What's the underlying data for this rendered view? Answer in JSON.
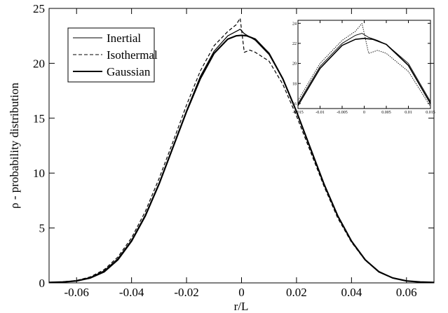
{
  "chart_data": [
    {
      "type": "line",
      "title": "",
      "xlabel": "r/L",
      "ylabel": "ρ - probability distribution",
      "xlim": [
        -0.07,
        0.07
      ],
      "ylim": [
        0,
        25
      ],
      "xticks": [
        -0.06,
        -0.04,
        -0.02,
        0,
        0.02,
        0.04,
        0.06
      ],
      "xtick_labels": [
        "-0.06",
        "-0.04",
        "-0.02",
        "0",
        "0.02",
        "0.04",
        "0.06"
      ],
      "yticks": [
        0,
        5,
        10,
        15,
        20,
        25
      ],
      "ytick_labels": [
        "0",
        "5",
        "10",
        "15",
        "20",
        "25"
      ],
      "grid": false,
      "legend_position": "top-left",
      "series": [
        {
          "name": "Inertial",
          "style": "solid-thin",
          "color": "#000000",
          "x": [
            -0.07,
            -0.065,
            -0.06,
            -0.055,
            -0.05,
            -0.045,
            -0.04,
            -0.035,
            -0.03,
            -0.025,
            -0.02,
            -0.015,
            -0.01,
            -0.005,
            -0.002,
            -0.0005,
            0.001,
            0.003,
            0.005,
            0.01,
            0.015,
            0.02,
            0.025,
            0.03,
            0.035,
            0.04,
            0.045,
            0.05,
            0.055,
            0.06,
            0.065,
            0.07
          ],
          "y": [
            0.05,
            0.09,
            0.2,
            0.5,
            1.1,
            2.2,
            3.9,
            6.2,
            9.1,
            12.4,
            15.7,
            18.8,
            21.1,
            22.5,
            22.9,
            23.1,
            22.7,
            22.4,
            22.1,
            20.8,
            18.6,
            15.6,
            12.3,
            9.0,
            6.1,
            3.8,
            2.1,
            1.05,
            0.45,
            0.18,
            0.07,
            0.03
          ]
        },
        {
          "name": "Isothermal",
          "style": "dashed",
          "color": "#000000",
          "x": [
            -0.07,
            -0.065,
            -0.06,
            -0.055,
            -0.05,
            -0.045,
            -0.04,
            -0.035,
            -0.03,
            -0.025,
            -0.02,
            -0.015,
            -0.01,
            -0.005,
            -0.002,
            -0.0005,
            0.001,
            0.003,
            0.005,
            0.01,
            0.015,
            0.02,
            0.025,
            0.03,
            0.035,
            0.04,
            0.045,
            0.05,
            0.055,
            0.06,
            0.065,
            0.07
          ],
          "y": [
            0.05,
            0.1,
            0.22,
            0.55,
            1.2,
            2.35,
            4.1,
            6.5,
            9.5,
            12.8,
            16.2,
            19.3,
            21.6,
            22.9,
            23.5,
            24.1,
            21.0,
            21.2,
            21.0,
            20.2,
            18.1,
            15.2,
            12.0,
            8.8,
            5.9,
            3.7,
            2.05,
            1.0,
            0.43,
            0.17,
            0.07,
            0.03
          ]
        },
        {
          "name": "Gaussian",
          "style": "solid-thick",
          "color": "#000000",
          "x": [
            -0.07,
            -0.065,
            -0.06,
            -0.055,
            -0.05,
            -0.045,
            -0.04,
            -0.035,
            -0.03,
            -0.025,
            -0.02,
            -0.015,
            -0.01,
            -0.005,
            -0.002,
            0,
            0.002,
            0.005,
            0.01,
            0.015,
            0.02,
            0.025,
            0.03,
            0.035,
            0.04,
            0.045,
            0.05,
            0.055,
            0.06,
            0.065,
            0.07
          ],
          "y": [
            0.04,
            0.08,
            0.18,
            0.45,
            1.0,
            2.1,
            3.8,
            6.1,
            9.0,
            12.3,
            15.6,
            18.6,
            20.9,
            22.2,
            22.5,
            22.55,
            22.5,
            22.2,
            20.9,
            18.6,
            15.6,
            12.3,
            9.0,
            6.1,
            3.8,
            2.1,
            1.0,
            0.45,
            0.18,
            0.08,
            0.04
          ]
        }
      ]
    },
    {
      "type": "line",
      "title": "",
      "xlabel": "",
      "ylabel": "",
      "xlim": [
        -0.015,
        0.015
      ],
      "ylim": [
        15.5,
        24.3
      ],
      "xticks": [
        -0.015,
        -0.01,
        -0.005,
        0,
        0.005,
        0.01,
        0.015
      ],
      "xtick_labels": [
        "-0.015",
        "-0.01",
        "-0.005",
        "0",
        "0.005",
        "0.01",
        "0.015"
      ],
      "yticks": [
        16,
        18,
        20,
        22,
        24
      ],
      "ytick_labels": [
        "16",
        "18",
        "20",
        "22",
        "24"
      ],
      "grid": false,
      "series": [
        {
          "style": "solid-thin",
          "color": "#000000",
          "x": [
            -0.015,
            -0.01,
            -0.005,
            -0.002,
            -0.0005,
            0.001,
            0.003,
            0.005,
            0.01,
            0.015
          ],
          "y": [
            16.0,
            19.7,
            22.0,
            22.8,
            23.0,
            22.6,
            22.3,
            21.9,
            20.0,
            16.2
          ]
        },
        {
          "style": "dotted",
          "color": "#000000",
          "x": [
            -0.015,
            -0.01,
            -0.005,
            -0.002,
            -0.0005,
            0.001,
            0.003,
            0.005,
            0.01,
            0.015
          ],
          "y": [
            16.3,
            20.0,
            22.3,
            23.2,
            24.0,
            21.0,
            21.3,
            21.0,
            19.2,
            15.7
          ]
        },
        {
          "style": "solid-thick",
          "color": "#000000",
          "x": [
            -0.015,
            -0.01,
            -0.005,
            -0.002,
            0,
            0.002,
            0.005,
            0.01,
            0.015
          ],
          "y": [
            15.8,
            19.5,
            21.8,
            22.4,
            22.5,
            22.4,
            21.9,
            19.8,
            16.0
          ]
        }
      ]
    }
  ]
}
